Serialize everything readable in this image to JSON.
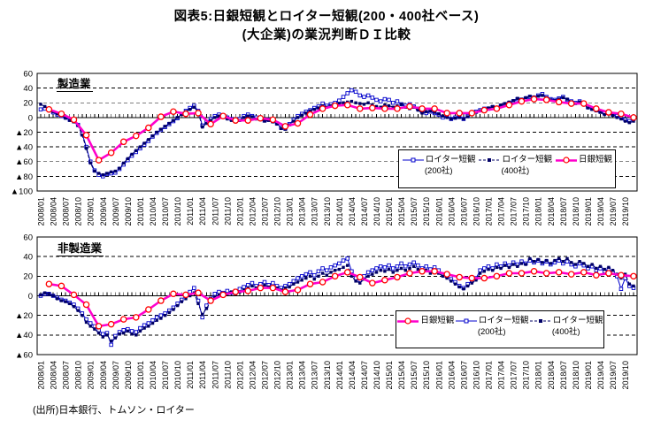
{
  "ui": {
    "title_line1": "図表5:日銀短観とロイター短観(200・400社ベース)",
    "title_line2": "(大企業)の業況判断ＤＩ比較",
    "source": "(出所)日本銀行、トムソン・ロイター"
  },
  "colors": {
    "reuters200": "#0000CC",
    "reuters400": "#000066",
    "boj_line": "#FF00CC",
    "boj_marker": "#FF0000",
    "grid": "#000000"
  },
  "x_tick_labels": [
    "2008/01",
    "2008/04",
    "2008/07",
    "2008/10",
    "2009/01",
    "2009/04",
    "2009/07",
    "2009/10",
    "2010/01",
    "2010/04",
    "2010/07",
    "2010/10",
    "2011/01",
    "2011/04",
    "2011/07",
    "2011/10",
    "2012/01",
    "2012/04",
    "2012/07",
    "2012/10",
    "2013/01",
    "2013/04",
    "2013/07",
    "2013/10",
    "2014/01",
    "2014/04",
    "2014/07",
    "2014/10",
    "2015/01",
    "2015/04",
    "2015/07",
    "2015/10",
    "2016/01",
    "2016/04",
    "2016/07",
    "2016/10",
    "2017/01",
    "2017/04",
    "2017/07",
    "2017/10",
    "2018/01",
    "2018/04",
    "2018/07",
    "2018/10",
    "2019/01",
    "2019/04",
    "2019/07",
    "2019/10"
  ],
  "chart_data": [
    {
      "type": "line",
      "id": "manufacturing",
      "label": "製造業",
      "ylim": [
        -100,
        60
      ],
      "ytick_step": 20,
      "grid": "horizontal dashed every 20, solid zero axis with monthly ticks",
      "x_range": [
        "2008/01",
        "2019/12"
      ],
      "legend_position": "inside lower right",
      "legend_order": [
        "reuters200",
        "reuters400",
        "boj"
      ],
      "series": [
        {
          "key": "reuters200",
          "name": "ロイター短観",
          "sub": "(200社)",
          "freq": "monthly",
          "values": [
            11,
            12,
            10,
            7,
            4,
            2,
            0,
            -3,
            -5,
            -10,
            -22,
            -40,
            -60,
            -72,
            -78,
            -80,
            -77,
            -76,
            -75,
            -70,
            -64,
            -58,
            -52,
            -47,
            -42,
            -37,
            -32,
            -26,
            -21,
            -17,
            -13,
            -9,
            -5,
            -1,
            5,
            9,
            13,
            16,
            9,
            -11,
            -6,
            -2,
            2,
            4,
            3,
            0,
            -2,
            -4,
            -2,
            2,
            4,
            2,
            0,
            -2,
            -4,
            -3,
            -5,
            -8,
            -14,
            -15,
            -9,
            -3,
            2,
            5,
            8,
            10,
            13,
            15,
            19,
            16,
            18,
            20,
            23,
            28,
            33,
            37,
            35,
            30,
            28,
            30,
            27,
            24,
            22,
            25,
            24,
            20,
            22,
            18,
            16,
            18,
            15,
            12,
            8,
            6,
            8,
            6,
            4,
            0,
            2,
            -2,
            0,
            1,
            -2,
            2,
            5,
            8,
            10,
            12,
            12,
            14,
            13,
            16,
            18,
            20,
            22,
            25,
            24,
            26,
            28,
            27,
            30,
            32,
            28,
            25,
            24,
            26,
            28,
            24,
            22,
            20,
            22,
            18,
            14,
            12,
            10,
            8,
            6,
            7,
            4,
            2,
            0,
            -3,
            -5,
            -2
          ]
        },
        {
          "key": "reuters400",
          "name": "ロイター短観",
          "sub": "(400社)",
          "freq": "monthly",
          "values": [
            18,
            15,
            12,
            8,
            5,
            3,
            -1,
            -4,
            -6,
            -11,
            -24,
            -42,
            -62,
            -73,
            -76,
            -78,
            -76,
            -74,
            -73,
            -69,
            -62,
            -56,
            -50,
            -45,
            -40,
            -35,
            -30,
            -25,
            -20,
            -16,
            -12,
            -8,
            -4,
            0,
            4,
            8,
            11,
            14,
            7,
            -13,
            -8,
            -4,
            0,
            2,
            1,
            -2,
            -4,
            -6,
            -4,
            0,
            2,
            1,
            -2,
            -3,
            -5,
            -4,
            -6,
            -9,
            -15,
            -16,
            -10,
            -5,
            0,
            3,
            6,
            9,
            11,
            13,
            16,
            14,
            16,
            18,
            19,
            20,
            21,
            22,
            20,
            19,
            18,
            20,
            17,
            15,
            14,
            17,
            16,
            14,
            16,
            18,
            14,
            12,
            14,
            10,
            6,
            8,
            9,
            7,
            5,
            2,
            0,
            -2,
            -1,
            0,
            -2,
            1,
            4,
            7,
            9,
            11,
            13,
            15,
            14,
            17,
            19,
            21,
            23,
            26,
            25,
            27,
            29,
            28,
            29,
            30,
            27,
            24,
            23,
            25,
            27,
            25,
            21,
            19,
            21,
            17,
            13,
            11,
            9,
            7,
            4,
            5,
            3,
            0,
            -2,
            -5,
            -7,
            -5
          ]
        },
        {
          "key": "boj",
          "name": "日銀短観",
          "sub": "",
          "freq": "quarterly",
          "survey_months": "03,06,09,12",
          "values": [
            11,
            5,
            -3,
            -24,
            -58,
            -48,
            -33,
            -25,
            -14,
            1,
            8,
            5,
            6,
            -9,
            2,
            -4,
            -4,
            -1,
            -3,
            -12,
            -8,
            4,
            12,
            16,
            17,
            12,
            13,
            12,
            12,
            15,
            12,
            12,
            6,
            6,
            6,
            10,
            12,
            17,
            22,
            25,
            24,
            21,
            19,
            19,
            12,
            7,
            5,
            0
          ]
        }
      ]
    },
    {
      "type": "line",
      "id": "non-manufacturing",
      "label": "非製造業",
      "ylim": [
        -60,
        60
      ],
      "ytick_step": 20,
      "grid": "horizontal dashed every 20, solid zero axis with monthly ticks",
      "x_range": [
        "2008/01",
        "2019/12"
      ],
      "legend_position": "inside lower right",
      "legend_order": [
        "boj",
        "reuters200",
        "reuters400"
      ],
      "series": [
        {
          "key": "reuters200",
          "name": "ロイター短観",
          "sub": "(200社)",
          "freq": "monthly",
          "values": [
            0,
            2,
            2,
            0,
            -2,
            -4,
            -5,
            -7,
            -9,
            -13,
            -18,
            -24,
            -28,
            -31,
            -35,
            -39,
            -38,
            -50,
            -41,
            -37,
            -35,
            -34,
            -36,
            -37,
            -33,
            -30,
            -28,
            -25,
            -22,
            -20,
            -18,
            -15,
            -12,
            -8,
            -4,
            0,
            4,
            8,
            -5,
            -22,
            -10,
            -3,
            2,
            4,
            3,
            5,
            3,
            5,
            7,
            9,
            11,
            13,
            10,
            12,
            14,
            11,
            13,
            10,
            8,
            10,
            12,
            15,
            18,
            20,
            22,
            24,
            21,
            25,
            28,
            26,
            29,
            31,
            33,
            36,
            38,
            25,
            18,
            16,
            20,
            24,
            26,
            28,
            30,
            29,
            31,
            28,
            30,
            33,
            30,
            32,
            34,
            31,
            28,
            30,
            27,
            29,
            26,
            22,
            20,
            17,
            14,
            10,
            8,
            12,
            15,
            18,
            26,
            28,
            30,
            28,
            32,
            30,
            33,
            31,
            34,
            32,
            35,
            33,
            36,
            34,
            36,
            33,
            35,
            32,
            34,
            36,
            33,
            35,
            32,
            30,
            33,
            31,
            28,
            30,
            26,
            28,
            25,
            27,
            24,
            20,
            7,
            18,
            10,
            8
          ]
        },
        {
          "key": "reuters400",
          "name": "ロイター短観",
          "sub": "(400社)",
          "freq": "monthly",
          "values": [
            1,
            3,
            2,
            0,
            -3,
            -5,
            -6,
            -8,
            -11,
            -15,
            -20,
            -27,
            -31,
            -34,
            -38,
            -42,
            -40,
            -46,
            -43,
            -39,
            -38,
            -36,
            -39,
            -40,
            -36,
            -33,
            -31,
            -28,
            -25,
            -23,
            -20,
            -17,
            -14,
            -10,
            -6,
            -3,
            0,
            3,
            -8,
            -19,
            -13,
            -6,
            -1,
            1,
            2,
            2,
            4,
            2,
            4,
            6,
            8,
            10,
            8,
            9,
            11,
            9,
            10,
            8,
            6,
            8,
            9,
            12,
            14,
            16,
            18,
            20,
            17,
            20,
            23,
            21,
            24,
            26,
            27,
            29,
            31,
            20,
            15,
            13,
            17,
            20,
            22,
            24,
            26,
            25,
            27,
            24,
            26,
            28,
            26,
            28,
            30,
            27,
            24,
            26,
            23,
            25,
            23,
            20,
            18,
            15,
            12,
            9,
            7,
            10,
            13,
            16,
            23,
            25,
            27,
            26,
            29,
            28,
            31,
            29,
            32,
            30,
            33,
            32,
            38,
            35,
            37,
            34,
            36,
            33,
            36,
            38,
            35,
            38,
            34,
            32,
            35,
            33,
            30,
            32,
            28,
            30,
            27,
            29,
            26,
            22,
            18,
            22,
            12,
            10
          ]
        },
        {
          "key": "boj",
          "name": "日銀短観",
          "sub": "",
          "freq": "quarterly",
          "survey_months": "03,06,09,12",
          "values": [
            12,
            10,
            1,
            -9,
            -31,
            -29,
            -24,
            -22,
            -14,
            -5,
            2,
            1,
            3,
            -5,
            1,
            4,
            5,
            8,
            8,
            4,
            6,
            12,
            14,
            20,
            24,
            19,
            13,
            16,
            19,
            23,
            25,
            25,
            22,
            19,
            18,
            18,
            20,
            23,
            23,
            25,
            23,
            24,
            22,
            24,
            21,
            23,
            21,
            20
          ]
        }
      ]
    }
  ]
}
